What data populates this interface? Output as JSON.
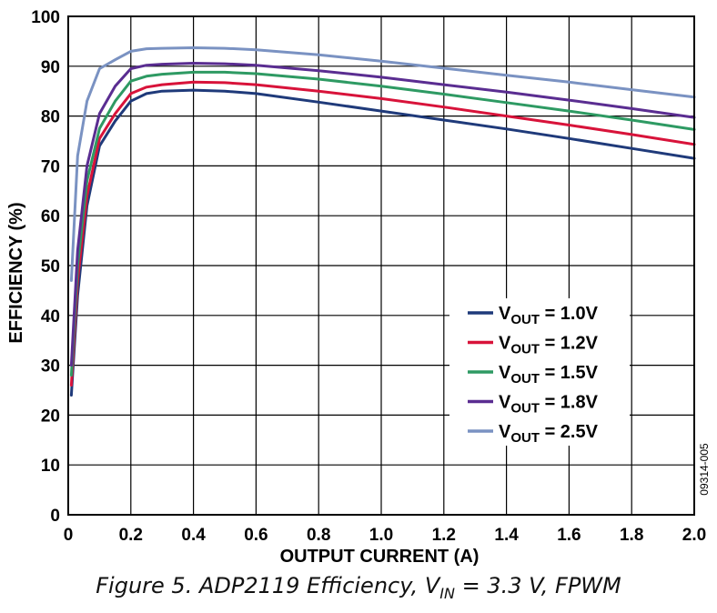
{
  "chart_data": {
    "type": "line",
    "title": "",
    "xlabel": "OUTPUT CURRENT (A)",
    "ylabel": "EFFICIENCY (%)",
    "xlim": [
      0,
      2.0
    ],
    "ylim": [
      0,
      100
    ],
    "xticks": [
      "0",
      "0.2",
      "0.4",
      "0.6",
      "0.8",
      "1.0",
      "1.2",
      "1.4",
      "1.6",
      "1.8",
      "2.0"
    ],
    "yticks": [
      "0",
      "10",
      "20",
      "30",
      "40",
      "50",
      "60",
      "70",
      "80",
      "90",
      "100"
    ],
    "grid": true,
    "legend_position": "middle-right",
    "series": [
      {
        "name": "VOUT = 1.0V",
        "label_main": "V",
        "label_sub": "OUT",
        "label_rest": " = 1.0V",
        "color": "#1f3a7a",
        "x": [
          0.01,
          0.03,
          0.06,
          0.1,
          0.15,
          0.2,
          0.25,
          0.3,
          0.4,
          0.5,
          0.6,
          0.8,
          1.0,
          1.2,
          1.4,
          1.6,
          1.8,
          2.0
        ],
        "y": [
          24,
          44,
          62,
          74,
          79,
          83,
          84.5,
          85,
          85.2,
          85,
          84.5,
          82.8,
          81,
          79.2,
          77.4,
          75.5,
          73.5,
          71.5
        ]
      },
      {
        "name": "VOUT = 1.2V",
        "label_main": "V",
        "label_sub": "OUT",
        "label_rest": " = 1.2V",
        "color": "#d8133a",
        "x": [
          0.01,
          0.03,
          0.06,
          0.1,
          0.15,
          0.2,
          0.25,
          0.3,
          0.4,
          0.5,
          0.6,
          0.8,
          1.0,
          1.2,
          1.4,
          1.6,
          1.8,
          2.0
        ],
        "y": [
          26,
          47,
          64,
          75.5,
          80.5,
          84.5,
          85.8,
          86.3,
          86.8,
          86.7,
          86.3,
          85,
          83.5,
          81.8,
          80,
          78.2,
          76.3,
          74.3
        ]
      },
      {
        "name": "VOUT = 1.5V",
        "label_main": "V",
        "label_sub": "OUT",
        "label_rest": " = 1.5V",
        "color": "#2e9a63",
        "x": [
          0.01,
          0.03,
          0.06,
          0.1,
          0.15,
          0.2,
          0.25,
          0.3,
          0.4,
          0.5,
          0.6,
          0.8,
          1.0,
          1.2,
          1.4,
          1.6,
          1.8,
          2.0
        ],
        "y": [
          28,
          50,
          67,
          77.5,
          83,
          87,
          88,
          88.4,
          88.8,
          88.8,
          88.5,
          87.4,
          86,
          84.4,
          82.7,
          81,
          79.2,
          77.3
        ]
      },
      {
        "name": "VOUT = 1.8V",
        "label_main": "V",
        "label_sub": "OUT",
        "label_rest": " = 1.8V",
        "color": "#5a2d91",
        "x": [
          0.01,
          0.03,
          0.06,
          0.1,
          0.15,
          0.2,
          0.25,
          0.3,
          0.4,
          0.5,
          0.6,
          0.8,
          1.0,
          1.2,
          1.4,
          1.6,
          1.8,
          2.0
        ],
        "y": [
          30,
          53,
          70,
          80.5,
          86,
          89.5,
          90.2,
          90.4,
          90.6,
          90.5,
          90.2,
          89.1,
          87.8,
          86.3,
          84.8,
          83.2,
          81.5,
          79.7
        ]
      },
      {
        "name": "VOUT = 2.5V",
        "label_main": "V",
        "label_sub": "OUT",
        "label_rest": " = 2.5V",
        "color": "#7a92c2",
        "x": [
          0.01,
          0.03,
          0.06,
          0.1,
          0.15,
          0.2,
          0.25,
          0.3,
          0.4,
          0.5,
          0.6,
          0.8,
          1.0,
          1.2,
          1.4,
          1.6,
          1.8,
          2.0
        ],
        "y": [
          47,
          72,
          83,
          89.5,
          91.3,
          93,
          93.5,
          93.6,
          93.7,
          93.6,
          93.3,
          92.3,
          91,
          89.6,
          88.2,
          86.8,
          85.3,
          83.8
        ]
      }
    ]
  },
  "side_note": "09314-005",
  "caption": {
    "prefix": "Figure 5. ADP2119 Efficiency, V",
    "sub": "IN",
    "suffix": " = 3.3 V, FPWM"
  }
}
